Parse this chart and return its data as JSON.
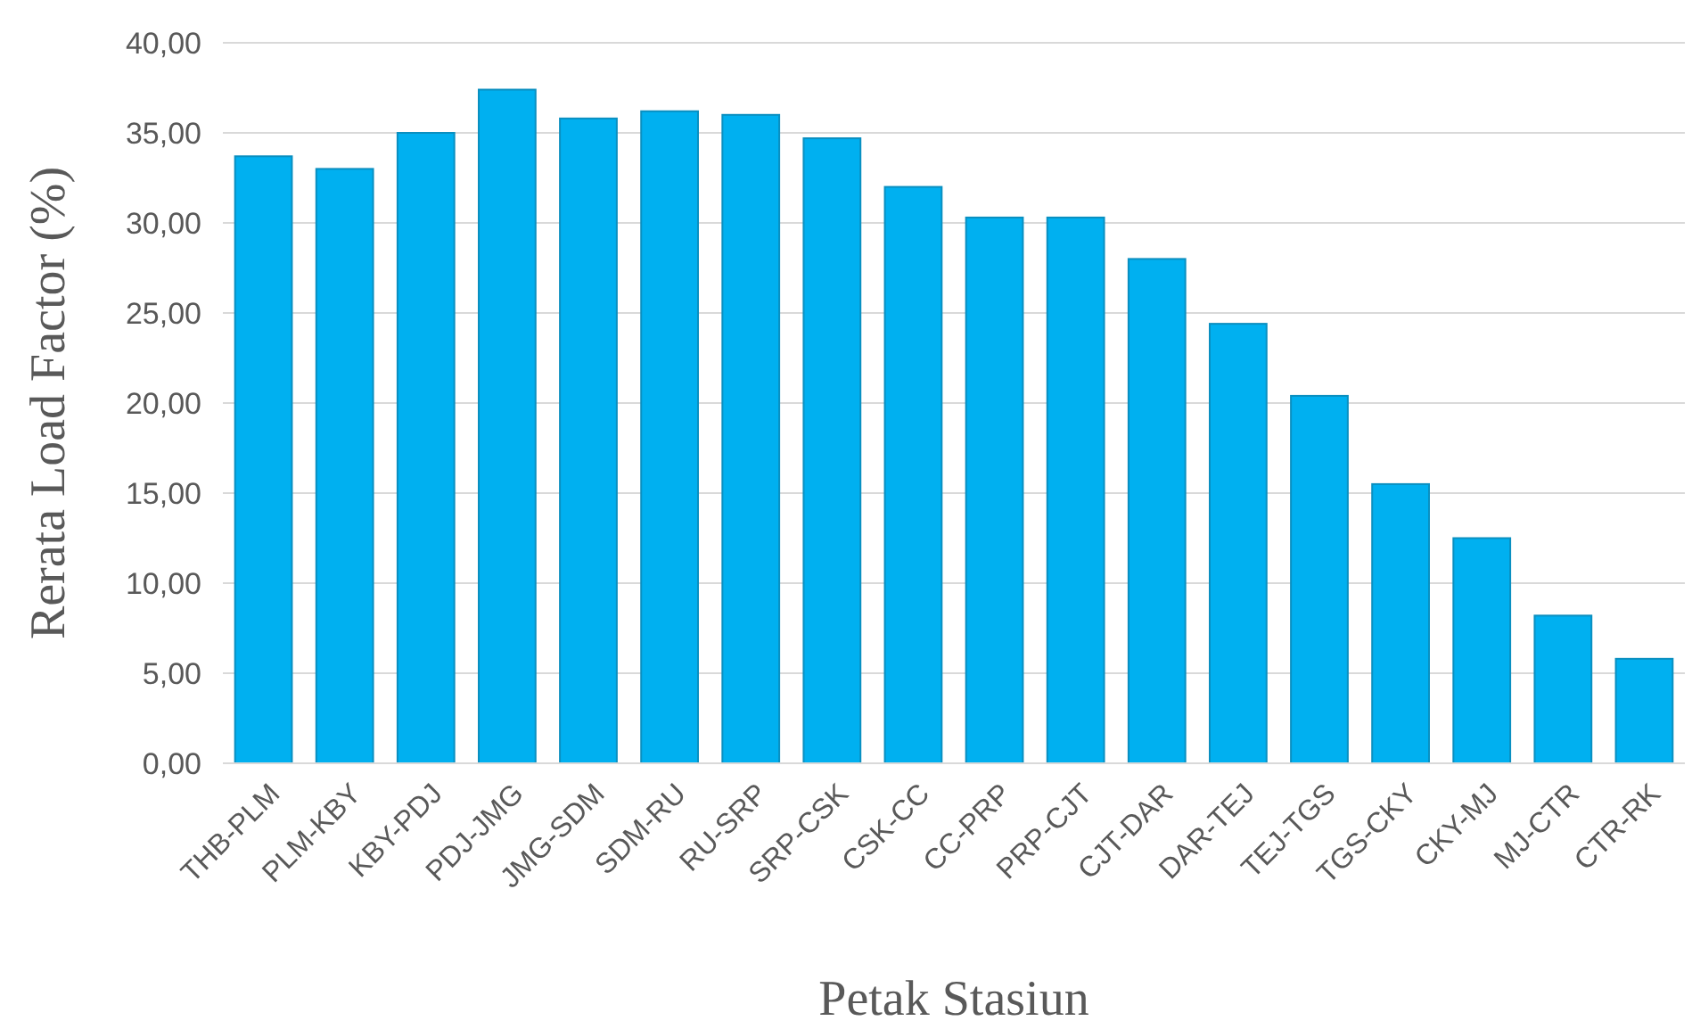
{
  "chart_data": {
    "type": "bar",
    "xlabel": "Petak Stasiun",
    "ylabel": "Rerata Load Factor (%)",
    "categories": [
      "THB-PLM",
      "PLM-KBY",
      "KBY-PDJ",
      "PDJ-JMG",
      "JMG-SDM",
      "SDM-RU",
      "RU-SRP",
      "SRP-CSK",
      "CSK-CC",
      "CC-PRP",
      "PRP-CJT",
      "CJT-DAR",
      "DAR-TEJ",
      "TEJ-TGS",
      "TGS-CKY",
      "CKY-MJ",
      "MJ-CTR",
      "CTR-RK"
    ],
    "values": [
      33.7,
      33.0,
      35.0,
      37.4,
      35.8,
      36.2,
      36.0,
      34.7,
      32.0,
      30.3,
      30.3,
      28.0,
      24.4,
      20.4,
      15.5,
      12.5,
      8.2,
      5.8
    ],
    "color": "#00b0f0",
    "ylim": [
      0,
      40
    ],
    "yticks": [
      {
        "value": 0,
        "label": "0,00"
      },
      {
        "value": 5,
        "label": "5,00"
      },
      {
        "value": 10,
        "label": "10,00"
      },
      {
        "value": 15,
        "label": "15,00"
      },
      {
        "value": 20,
        "label": "20,00"
      },
      {
        "value": 25,
        "label": "25,00"
      },
      {
        "value": 30,
        "label": "30,00"
      },
      {
        "value": 35,
        "label": "35,00"
      },
      {
        "value": 40,
        "label": "40,00"
      }
    ],
    "grid": "y"
  }
}
